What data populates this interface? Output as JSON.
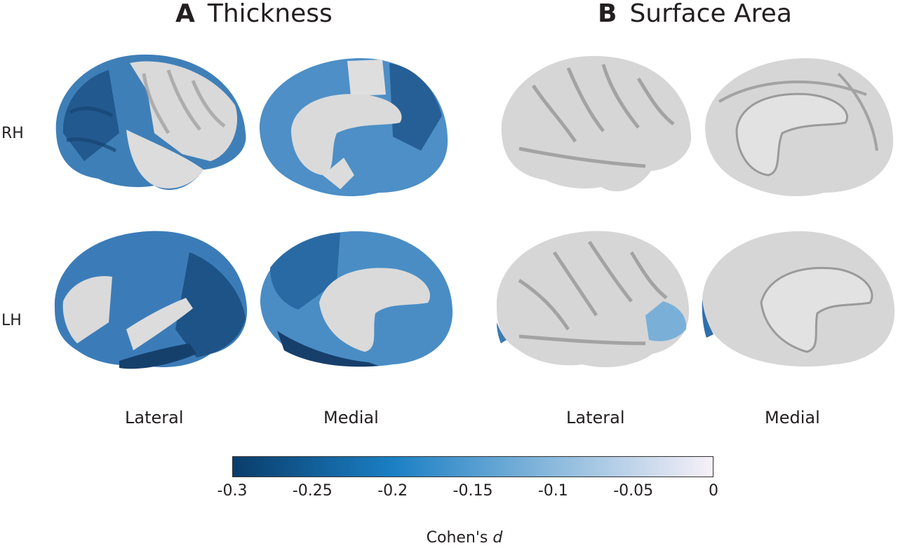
{
  "panels": [
    {
      "letter": "A",
      "title": "Thickness"
    },
    {
      "letter": "B",
      "title": "Surface Area"
    }
  ],
  "rows": [
    "RH",
    "LH"
  ],
  "views": [
    "Lateral",
    "Medial",
    "Lateral",
    "Medial"
  ],
  "colorbar": {
    "ticks": [
      "-0.3",
      "-0.25",
      "-0.2",
      "-0.15",
      "-0.1",
      "-0.05",
      "0"
    ],
    "label_main": "Cohen's",
    "label_var": "d",
    "colors": [
      "#0a3d6b",
      "#1b7fc4",
      "#8ab9dc",
      "#f7f0f8"
    ]
  },
  "colors": {
    "cortex_gray": "#d8d8d8",
    "dark_blue": "#1e5a8e",
    "mid_blue": "#3a86c0",
    "light_blue": "#6fa8d4"
  }
}
